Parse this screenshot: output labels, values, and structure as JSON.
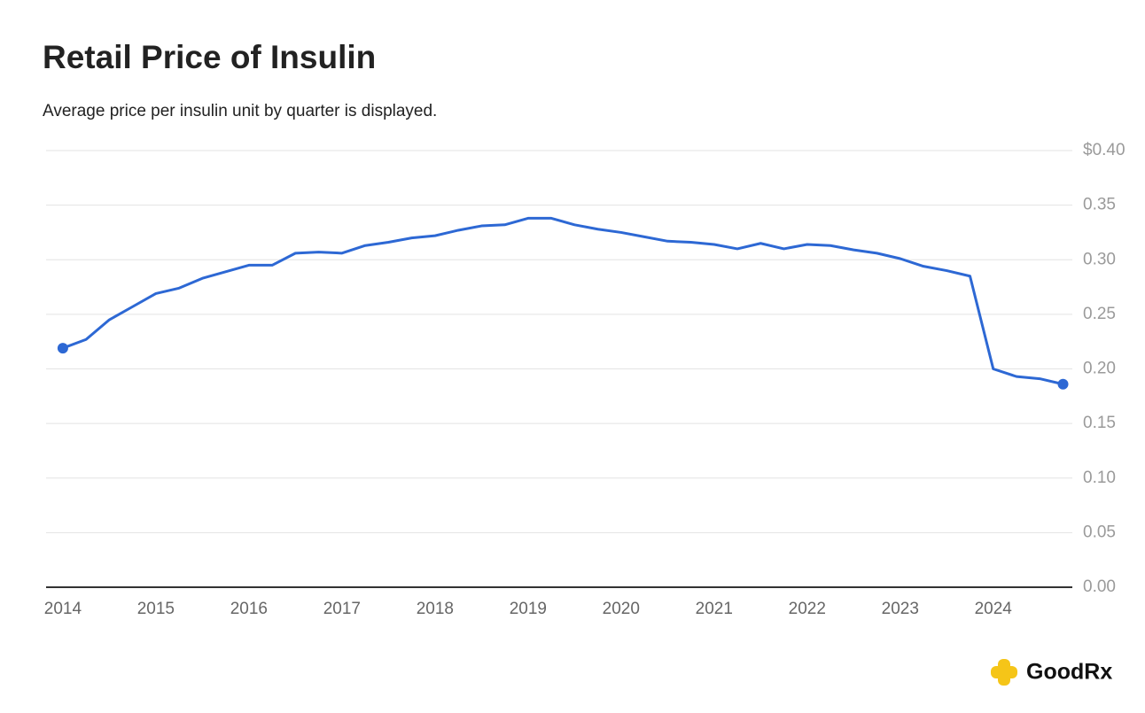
{
  "chart_data": {
    "type": "line",
    "title": "Retail Price of Insulin",
    "subtitle": "Average price per insulin unit by quarter is displayed.",
    "x": [
      2014,
      2014.25,
      2014.5,
      2014.75,
      2015,
      2015.25,
      2015.5,
      2015.75,
      2016,
      2016.25,
      2016.5,
      2016.75,
      2017,
      2017.25,
      2017.5,
      2017.75,
      2018,
      2018.25,
      2018.5,
      2018.75,
      2019,
      2019.25,
      2019.5,
      2019.75,
      2020,
      2020.25,
      2020.5,
      2020.75,
      2021,
      2021.25,
      2021.5,
      2021.75,
      2022,
      2022.25,
      2022.5,
      2022.75,
      2023,
      2023.25,
      2023.5,
      2023.75,
      2024,
      2024.25,
      2024.5,
      2024.75
    ],
    "values": [
      0.219,
      0.227,
      0.245,
      0.257,
      0.269,
      0.274,
      0.283,
      0.289,
      0.295,
      0.295,
      0.306,
      0.307,
      0.306,
      0.313,
      0.316,
      0.32,
      0.322,
      0.327,
      0.331,
      0.332,
      0.338,
      0.338,
      0.332,
      0.328,
      0.325,
      0.321,
      0.317,
      0.316,
      0.314,
      0.31,
      0.315,
      0.31,
      0.314,
      0.313,
      0.309,
      0.306,
      0.301,
      0.294,
      0.29,
      0.285,
      0.2,
      0.193,
      0.191,
      0.186
    ],
    "color": "#2d68d4",
    "end_markers": true,
    "xlim": [
      2013.82,
      2024.85
    ],
    "xticks": [
      2014,
      2015,
      2016,
      2017,
      2018,
      2019,
      2020,
      2021,
      2022,
      2023,
      2024
    ],
    "ylim": [
      0,
      0.4
    ],
    "yticks": [
      {
        "value": 0,
        "label": "0.00"
      },
      0.05,
      {
        "value": 0.1,
        "label": "0.10"
      },
      0.15,
      {
        "value": 0.2,
        "label": "0.20"
      },
      0.25,
      {
        "value": 0.3,
        "label": "0.30"
      },
      0.35,
      {
        "value": 0.4,
        "label": "$0.40"
      }
    ],
    "grid": true,
    "logo": "GoodRx"
  }
}
